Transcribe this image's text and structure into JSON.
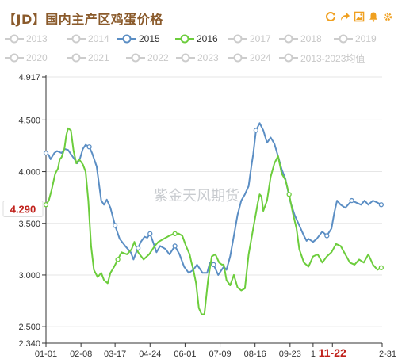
{
  "title": "【JD】国内主产区鸡蛋价格",
  "toolbar": {
    "icons": [
      "refresh-icon",
      "share-icon",
      "save-image-icon",
      "notify-icon",
      "settings-icon"
    ],
    "color": "#f0a020"
  },
  "legend": {
    "rows": [
      [
        {
          "label": "2013",
          "active": false
        },
        {
          "label": "2014",
          "active": false
        },
        {
          "label": "2015",
          "active": true,
          "color": "#5b8ec4"
        },
        {
          "label": "2016",
          "active": true,
          "color": "#6ccd3c"
        },
        {
          "label": "2017",
          "active": false
        },
        {
          "label": "2018",
          "active": false
        },
        {
          "label": "2019",
          "active": false
        }
      ],
      [
        {
          "label": "2020",
          "active": false
        },
        {
          "label": "2021",
          "active": false
        },
        {
          "label": "2022",
          "active": false
        },
        {
          "label": "2023",
          "active": false
        },
        {
          "label": "2024",
          "active": false
        },
        {
          "label": "2013-2023均值",
          "active": false
        }
      ]
    ]
  },
  "watermark": "紫金天风期货",
  "current_value": {
    "label": "4.290",
    "color": "#c0211b"
  },
  "chart_data": {
    "type": "line",
    "title": "【JD】国内主产区鸡蛋价格",
    "y_range": [
      2.34,
      4.917
    ],
    "y_ticks": [
      "4.917",
      "4.500",
      "4.000",
      "3.500",
      "3.000",
      "2.500",
      "2.340"
    ],
    "y_tick_values": [
      4.917,
      4.5,
      4.0,
      3.5,
      3.0,
      2.5,
      2.34
    ],
    "x_range": [
      0,
      365
    ],
    "x_ticks": [
      "01-01",
      "02-08",
      "03-17",
      "04-24",
      "06-01",
      "07-09",
      "08-16",
      "09-23",
      "1",
      "11-22",
      "2-31"
    ],
    "x_tick_positions": [
      0,
      38,
      75,
      113,
      151,
      189,
      227,
      265,
      290,
      311,
      365
    ],
    "x_tick_highlight": [
      "11-22"
    ],
    "grid": "horizontal",
    "series": [
      {
        "name": "2015",
        "color": "#5b8ec4",
        "x": [
          0,
          3,
          5,
          9,
          12,
          17,
          20,
          24,
          27,
          31,
          34,
          37,
          40,
          43,
          47,
          50,
          55,
          60,
          63,
          66,
          70,
          75,
          80,
          86,
          92,
          95,
          98,
          103,
          107,
          110,
          113,
          117,
          120,
          124,
          130,
          134,
          140,
          145,
          150,
          155,
          160,
          164,
          170,
          175,
          178,
          182,
          187,
          193,
          196,
          200,
          204,
          208,
          212,
          216,
          220,
          223,
          225,
          228,
          232,
          236,
          240,
          244,
          248,
          252,
          256,
          260,
          265,
          270,
          275,
          280,
          283,
          285,
          290,
          294,
          300,
          305,
          310,
          313,
          316,
          320,
          325,
          332,
          337,
          342,
          346,
          350,
          355,
          360,
          364
        ],
        "y": [
          4.18,
          4.16,
          4.12,
          4.18,
          4.2,
          4.18,
          4.22,
          4.21,
          4.17,
          4.12,
          4.08,
          4.13,
          4.22,
          4.26,
          4.24,
          4.18,
          4.05,
          3.72,
          3.68,
          3.73,
          3.65,
          3.48,
          3.35,
          3.28,
          3.22,
          3.15,
          3.22,
          3.32,
          3.37,
          3.36,
          3.4,
          3.3,
          3.22,
          3.28,
          3.25,
          3.2,
          3.28,
          3.2,
          3.08,
          3.02,
          3.05,
          3.1,
          3.02,
          3.02,
          3.12,
          3.1,
          3.0,
          3.08,
          3.05,
          3.18,
          3.38,
          3.58,
          3.72,
          3.78,
          3.86,
          4.05,
          4.17,
          4.4,
          4.47,
          4.4,
          4.28,
          4.33,
          4.27,
          4.15,
          4.02,
          3.93,
          3.72,
          3.58,
          3.48,
          3.38,
          3.33,
          3.35,
          3.32,
          3.35,
          3.42,
          3.38,
          3.45,
          3.6,
          3.72,
          3.68,
          3.65,
          3.72,
          3.7,
          3.68,
          3.72,
          3.68,
          3.72,
          3.7,
          3.68
        ]
      },
      {
        "name": "2016",
        "color": "#6ccd3c",
        "x": [
          0,
          3,
          6,
          8,
          10,
          13,
          15,
          17,
          20,
          22,
          24,
          27,
          30,
          33,
          36,
          40,
          43,
          46,
          49,
          52,
          56,
          60,
          63,
          67,
          70,
          74,
          78,
          82,
          88,
          93,
          96,
          100,
          106,
          112,
          118,
          122,
          128,
          134,
          139,
          144,
          148,
          152,
          156,
          158,
          160,
          163,
          166,
          169,
          172,
          176,
          180,
          184,
          188,
          191,
          193,
          196,
          200,
          204,
          208,
          212,
          216,
          220,
          224,
          228,
          230,
          232,
          234,
          236,
          240,
          244,
          248,
          252,
          256,
          260,
          264,
          268,
          272,
          275,
          280,
          285,
          290,
          295,
          300,
          305,
          310,
          315,
          320,
          325,
          330,
          335,
          340,
          345,
          350,
          355,
          360,
          364
        ],
        "y": [
          3.68,
          3.72,
          3.82,
          3.9,
          3.98,
          4.03,
          4.12,
          4.14,
          4.22,
          4.35,
          4.42,
          4.4,
          4.2,
          4.08,
          4.12,
          4.07,
          4.0,
          3.72,
          3.28,
          3.05,
          2.98,
          3.02,
          2.95,
          2.92,
          3.02,
          3.08,
          3.15,
          3.22,
          3.2,
          3.25,
          3.32,
          3.22,
          3.15,
          3.2,
          3.28,
          3.32,
          3.35,
          3.38,
          3.4,
          3.4,
          3.38,
          3.28,
          3.2,
          3.12,
          3.05,
          2.92,
          2.68,
          2.62,
          2.62,
          2.95,
          3.18,
          3.2,
          3.12,
          3.1,
          3.1,
          2.95,
          2.9,
          3.0,
          2.88,
          2.85,
          2.87,
          3.2,
          3.4,
          3.6,
          3.7,
          3.78,
          3.76,
          3.62,
          3.72,
          3.95,
          4.08,
          4.15,
          3.98,
          3.92,
          3.78,
          3.6,
          3.45,
          3.25,
          3.12,
          3.08,
          3.18,
          3.2,
          3.12,
          3.18,
          3.22,
          3.3,
          3.28,
          3.2,
          3.12,
          3.1,
          3.15,
          3.12,
          3.2,
          3.1,
          3.05,
          3.07
        ]
      }
    ],
    "markers": [
      {
        "series": "2015",
        "x": 0
      },
      {
        "series": "2015",
        "x": 47
      },
      {
        "series": "2015",
        "x": 75
      },
      {
        "series": "2015",
        "x": 100
      },
      {
        "series": "2015",
        "x": 113
      },
      {
        "series": "2015",
        "x": 140
      },
      {
        "series": "2015",
        "x": 182
      },
      {
        "series": "2015",
        "x": 228
      },
      {
        "series": "2015",
        "x": 305
      },
      {
        "series": "2015",
        "x": 332
      },
      {
        "series": "2015",
        "x": 364
      },
      {
        "series": "2016",
        "x": 0
      },
      {
        "series": "2016",
        "x": 78
      },
      {
        "series": "2016",
        "x": 140
      },
      {
        "series": "2016",
        "x": 264
      },
      {
        "series": "2016",
        "x": 364
      }
    ]
  }
}
